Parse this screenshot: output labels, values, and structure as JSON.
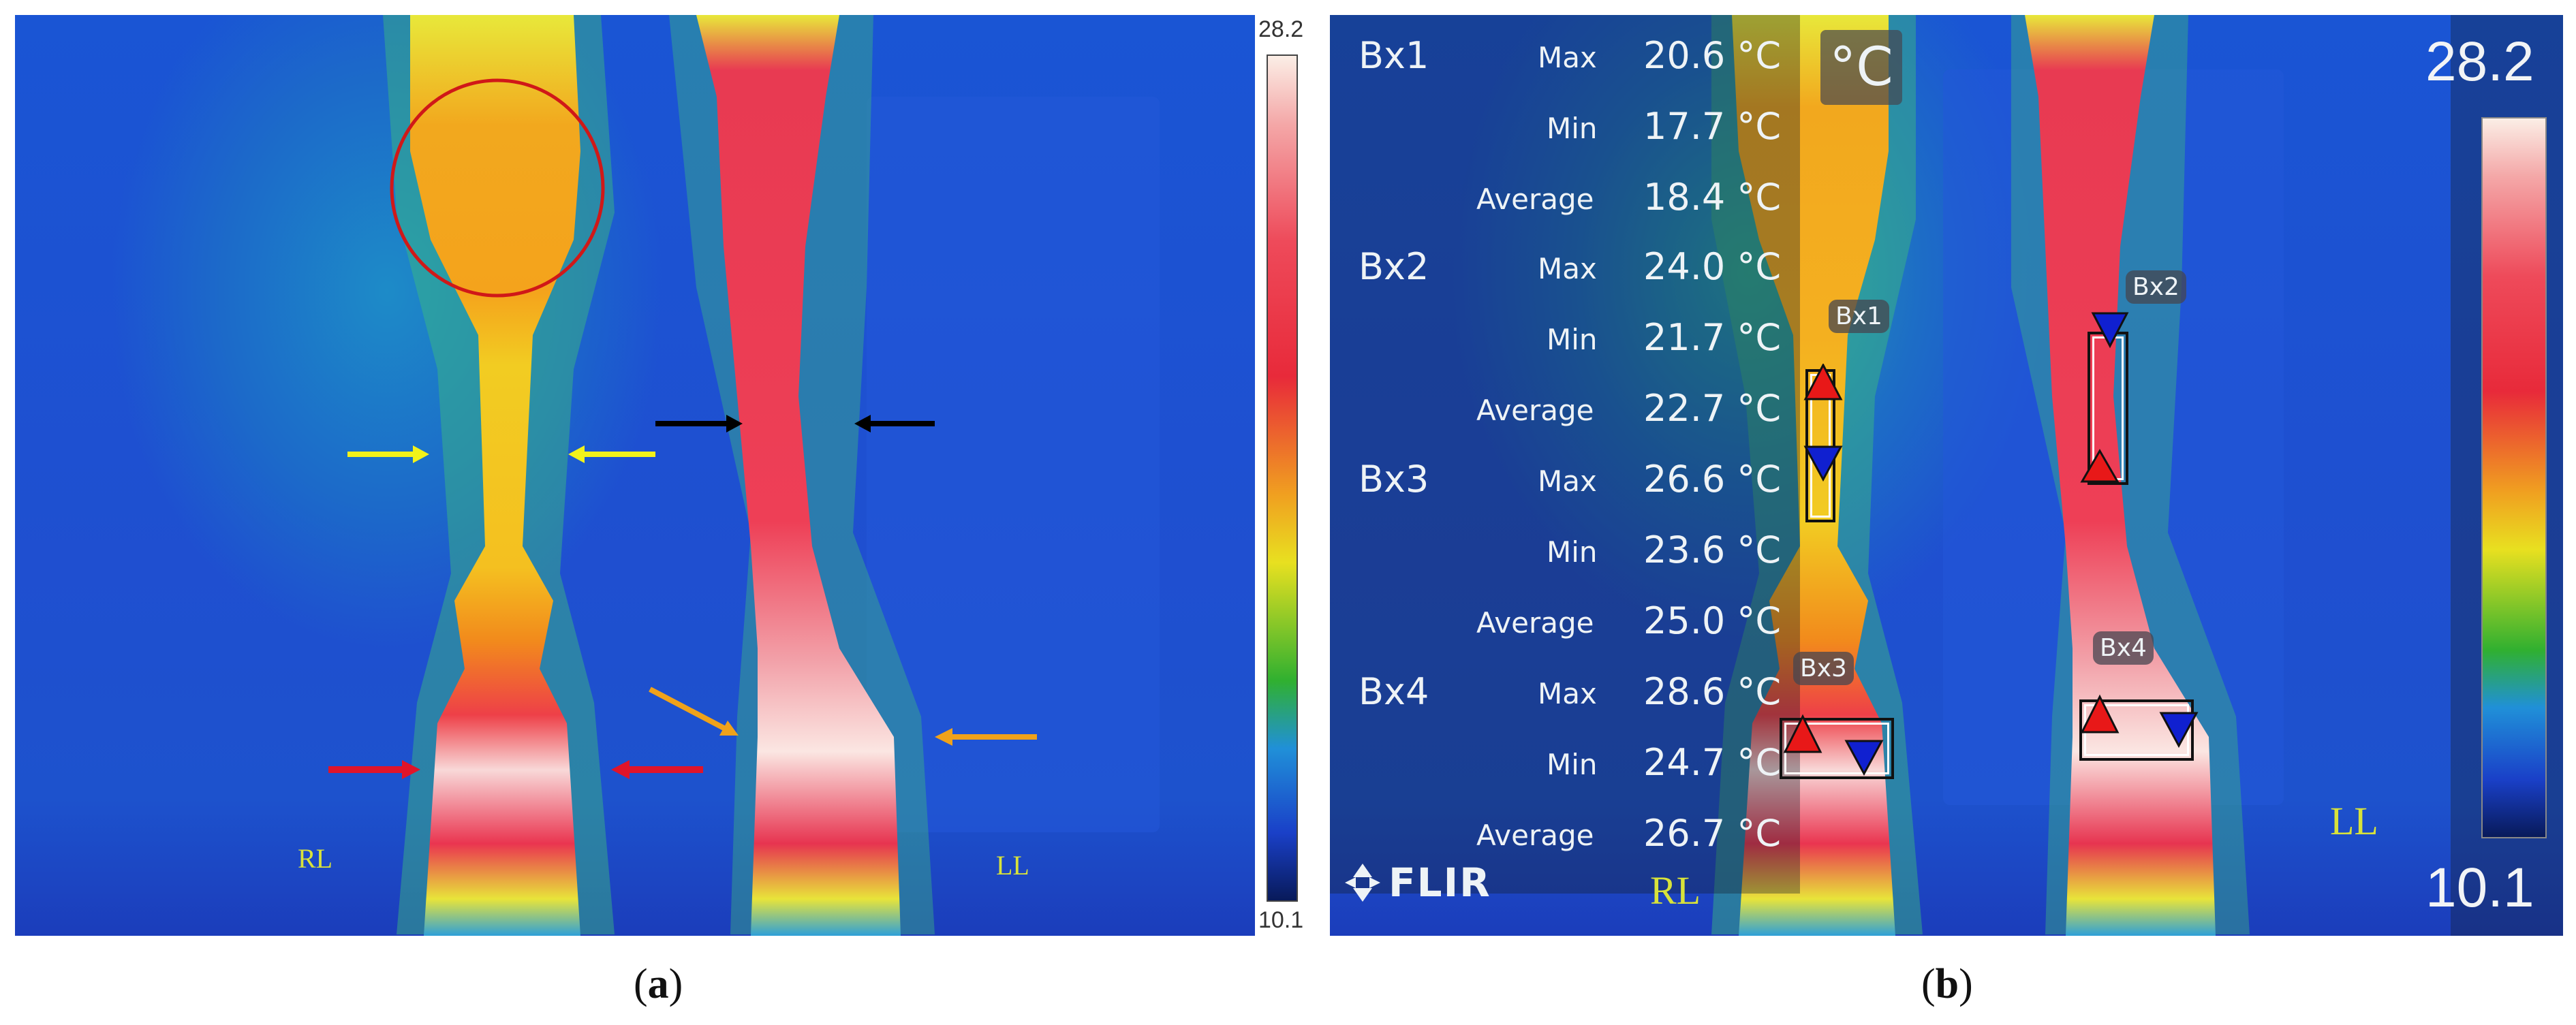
{
  "panels": {
    "a": {
      "caption_open": "(",
      "caption_letter": "a",
      "caption_close": ")",
      "left_leg_label": "RL",
      "right_leg_label": "LL",
      "scale_max": "28.2",
      "scale_min": "10.1"
    },
    "b": {
      "caption_open": "(",
      "caption_letter": "b",
      "caption_close": ")",
      "left_leg_label": "RL",
      "right_leg_label": "LL",
      "scale_max": "28.2",
      "scale_min": "10.1",
      "unit_badge": "°C",
      "logo_text": "FLIR",
      "readouts": [
        {
          "box": "Bx1",
          "rows": [
            {
              "label": "Max",
              "value": "20.6 °C"
            },
            {
              "label": "Min",
              "value": "17.7 °C"
            },
            {
              "label": "Average",
              "value": "18.4 °C"
            }
          ]
        },
        {
          "box": "Bx2",
          "rows": [
            {
              "label": "Max",
              "value": "24.0 °C"
            },
            {
              "label": "Min",
              "value": "21.7 °C"
            },
            {
              "label": "Average",
              "value": "22.7 °C"
            }
          ]
        },
        {
          "box": "Bx3",
          "rows": [
            {
              "label": "Max",
              "value": "26.6 °C"
            },
            {
              "label": "Min",
              "value": "23.6 °C"
            },
            {
              "label": "Average",
              "value": "25.0 °C"
            }
          ]
        },
        {
          "box": "Bx4",
          "rows": [
            {
              "label": "Max",
              "value": "28.6 °C"
            },
            {
              "label": "Min",
              "value": "24.7 °C"
            },
            {
              "label": "Average",
              "value": "26.7 °C"
            }
          ]
        }
      ],
      "roi_labels": [
        "Bx1",
        "Bx2",
        "Bx3",
        "Bx4"
      ]
    }
  },
  "colors": {
    "arrow_yellow": "#f2f21a",
    "arrow_black": "#000000",
    "arrow_red": "#e0142a",
    "arrow_orange": "#f0a21a",
    "circle_red": "#d01818",
    "marker_max": "#e81818",
    "marker_min": "#1020d0"
  }
}
